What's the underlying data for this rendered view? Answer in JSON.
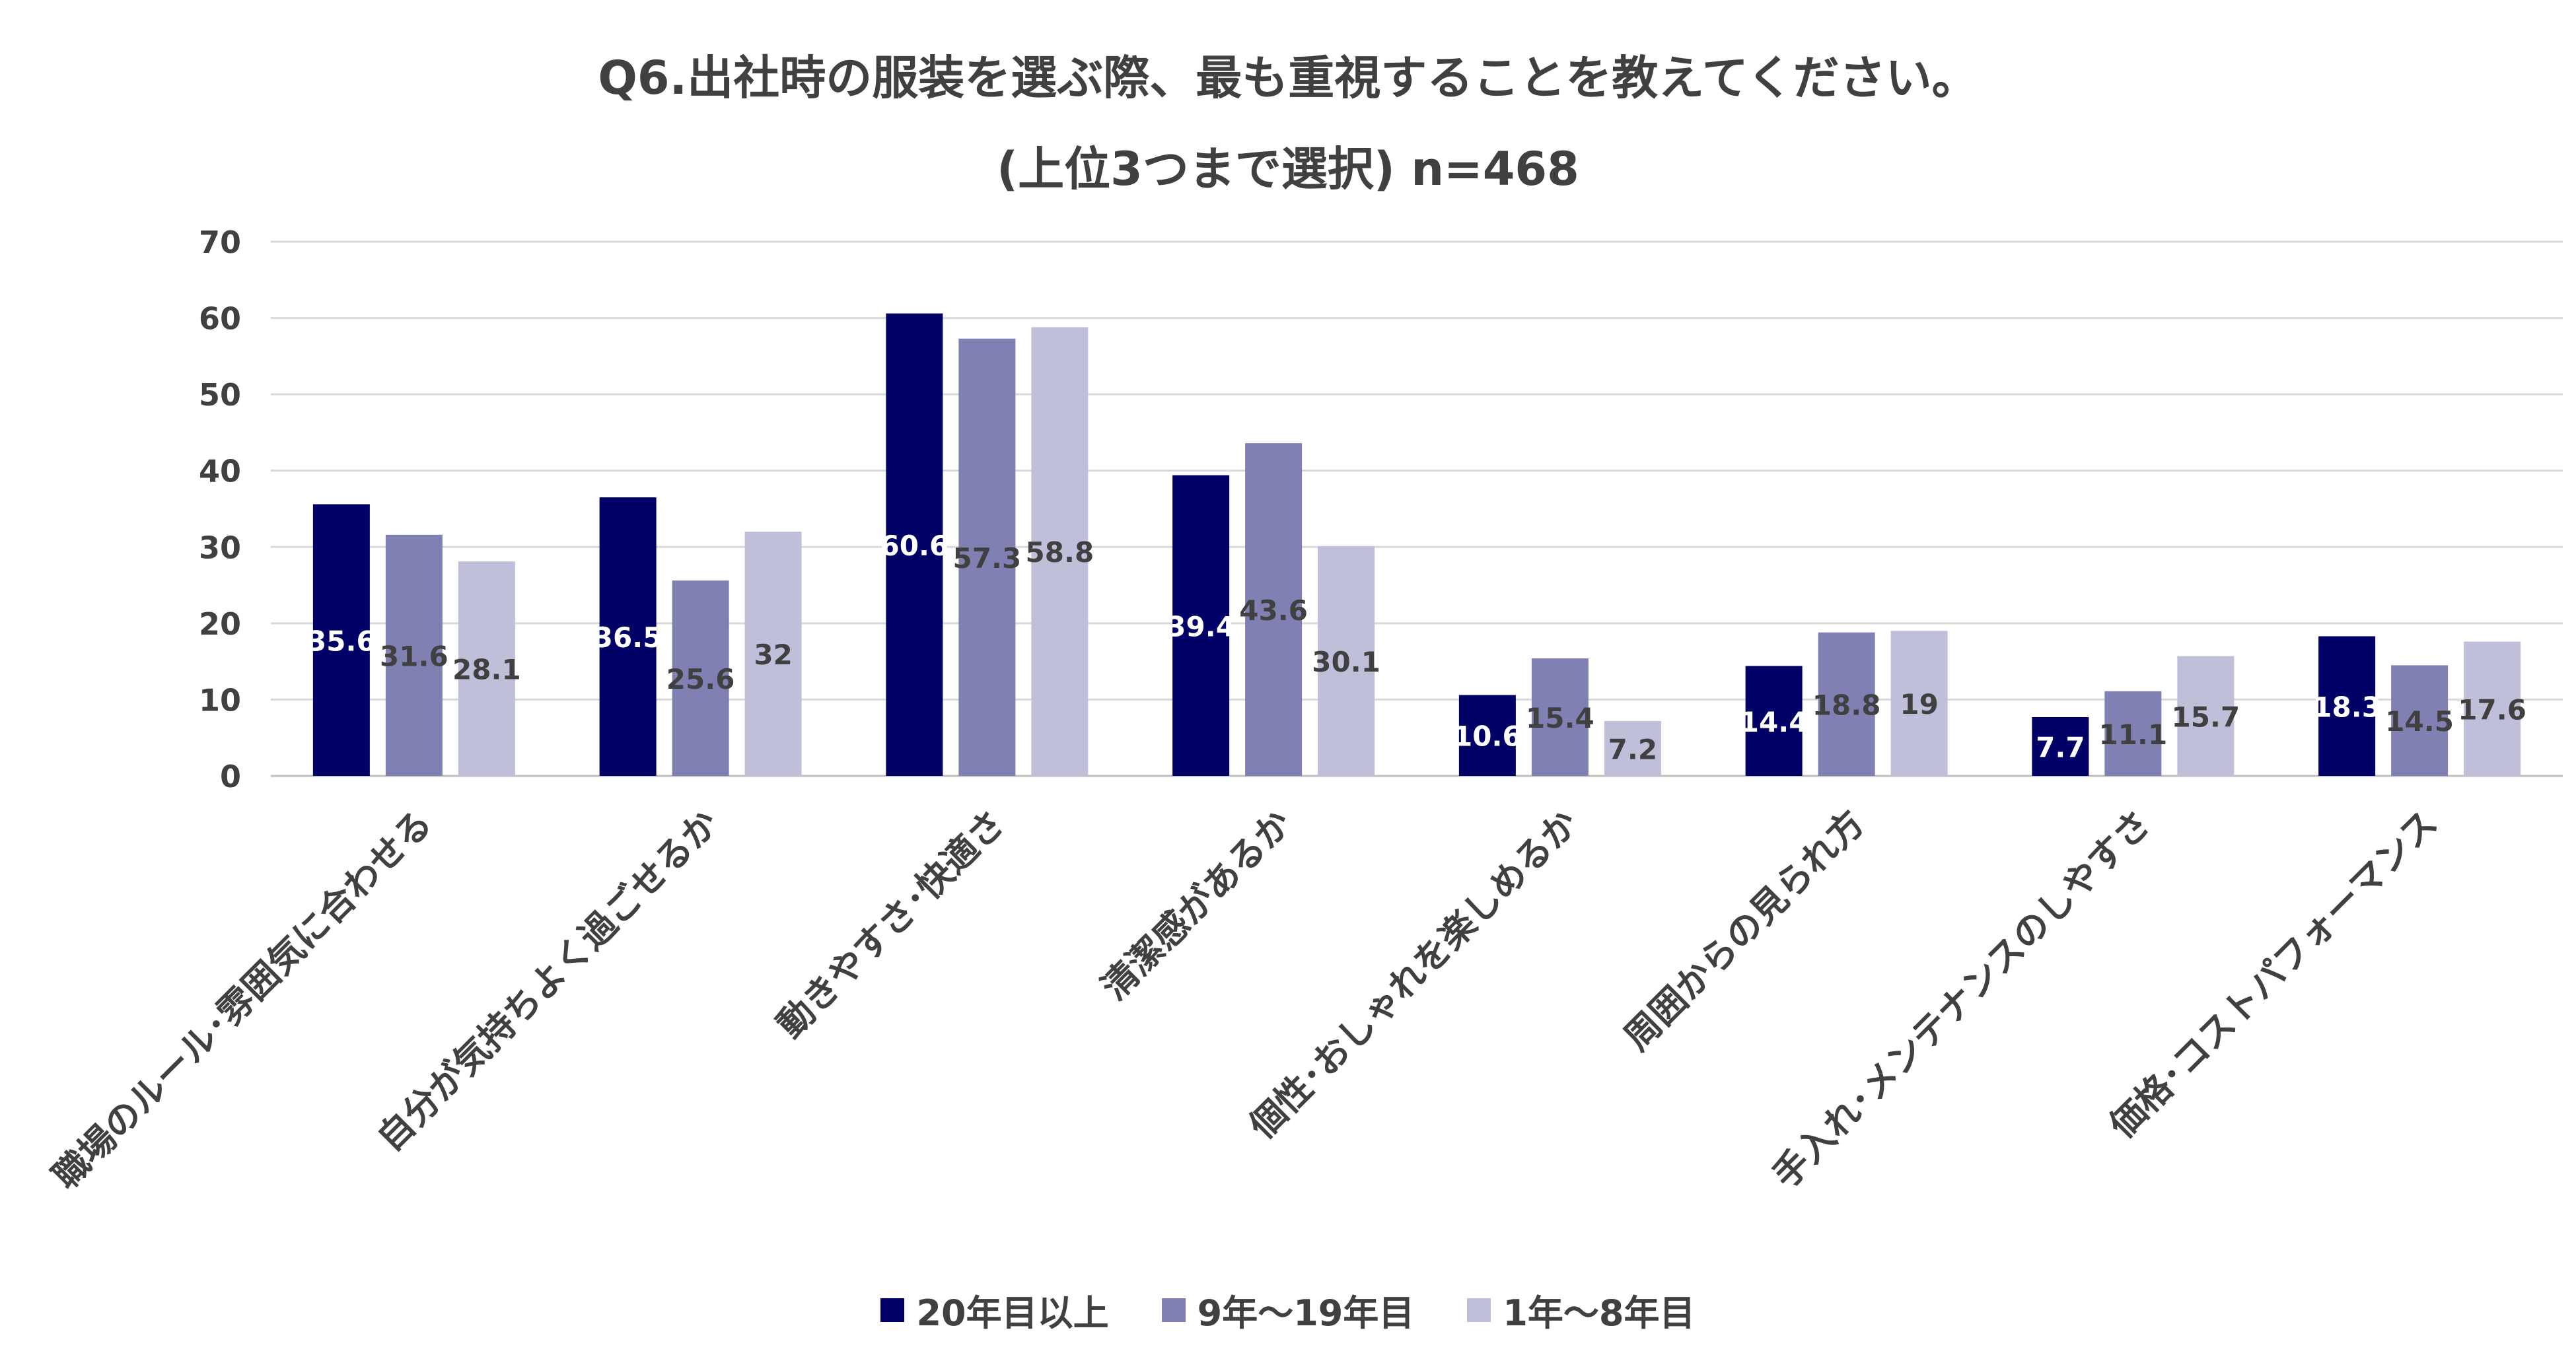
{
  "chart_data": {
    "type": "bar",
    "title": "Q6.出社時の服装を選ぶ際、最も重視することを教えてください。",
    "subtitle": "(上位3つまで選択) n=468",
    "categories": [
      "職場のルール･雰囲気に合わせる",
      "自分が気持ちよく過ごせるか",
      "動きやすさ･快適さ",
      "清潔感があるか",
      "個性･おしゃれを楽しめるか",
      "周囲からの見られ方",
      "手入れ･メンテナンスのしやすさ",
      "価格･コストパフォーマンス"
    ],
    "series": [
      {
        "name": "20年目以上",
        "color": "#000066",
        "label_color": "#ffffff",
        "values": [
          35.6,
          36.5,
          60.6,
          39.4,
          10.6,
          14.4,
          7.7,
          18.3
        ]
      },
      {
        "name": "9年～19年目",
        "color": "#8080b3",
        "label_color": "#404040",
        "values": [
          31.6,
          25.6,
          57.3,
          43.6,
          15.4,
          18.8,
          11.1,
          14.5
        ]
      },
      {
        "name": "1年～8年目",
        "color": "#bfbfd9",
        "label_color": "#404040",
        "values": [
          28.1,
          32,
          58.8,
          30.1,
          7.2,
          19,
          15.7,
          17.6
        ]
      }
    ],
    "ylim": [
      0,
      70
    ],
    "yticks": [
      0,
      10,
      20,
      30,
      40,
      50,
      60,
      70
    ],
    "grid": true,
    "legend_position": "bottom"
  }
}
